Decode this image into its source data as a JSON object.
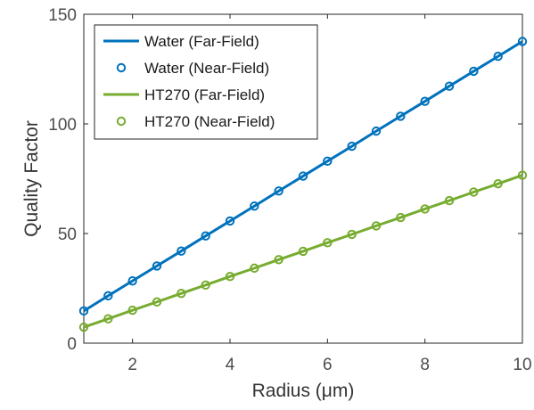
{
  "chart_data": {
    "type": "line",
    "xlabel": "Radius (μm)",
    "ylabel": "Quality Factor",
    "xlim": [
      1,
      10
    ],
    "ylim": [
      0,
      150
    ],
    "x_ticks": [
      2,
      4,
      6,
      8,
      10
    ],
    "y_ticks": [
      0,
      50,
      100,
      150
    ],
    "grid": false,
    "legend_position": "top-left",
    "x": [
      1,
      1.5,
      2,
      2.5,
      3,
      3.5,
      4,
      4.5,
      5,
      5.5,
      6,
      6.5,
      7,
      7.5,
      8,
      8.5,
      9,
      9.5,
      10
    ],
    "series": [
      {
        "name": "Water (Far-Field)",
        "style": "line",
        "color": "#0072BD",
        "values": [
          14.7,
          21.6,
          28.4,
          35.2,
          42.0,
          48.9,
          55.7,
          62.5,
          69.4,
          76.2,
          83.0,
          89.8,
          96.7,
          103.5,
          110.3,
          117.2,
          124.0,
          130.8,
          137.6
        ]
      },
      {
        "name": "Water (Near-Field)",
        "style": "marker",
        "color": "#0072BD",
        "values": [
          14.7,
          21.6,
          28.4,
          35.2,
          42.0,
          48.9,
          55.7,
          62.5,
          69.4,
          76.2,
          83.0,
          89.8,
          96.7,
          103.5,
          110.3,
          117.2,
          124.0,
          130.8,
          137.6
        ]
      },
      {
        "name": "HT270 (Far-Field)",
        "style": "line",
        "color": "#77AC30",
        "values": [
          7.3,
          11.1,
          15.0,
          18.8,
          22.7,
          26.5,
          30.4,
          34.2,
          38.1,
          41.9,
          45.8,
          49.6,
          53.5,
          57.3,
          61.2,
          65.0,
          68.9,
          72.7,
          76.6
        ]
      },
      {
        "name": "HT270 (Near-Field)",
        "style": "marker",
        "color": "#77AC30",
        "values": [
          7.3,
          11.1,
          15.0,
          18.8,
          22.7,
          26.5,
          30.4,
          34.2,
          38.1,
          41.9,
          45.8,
          49.6,
          53.5,
          57.3,
          61.2,
          65.0,
          68.9,
          72.7,
          76.6
        ]
      }
    ]
  }
}
